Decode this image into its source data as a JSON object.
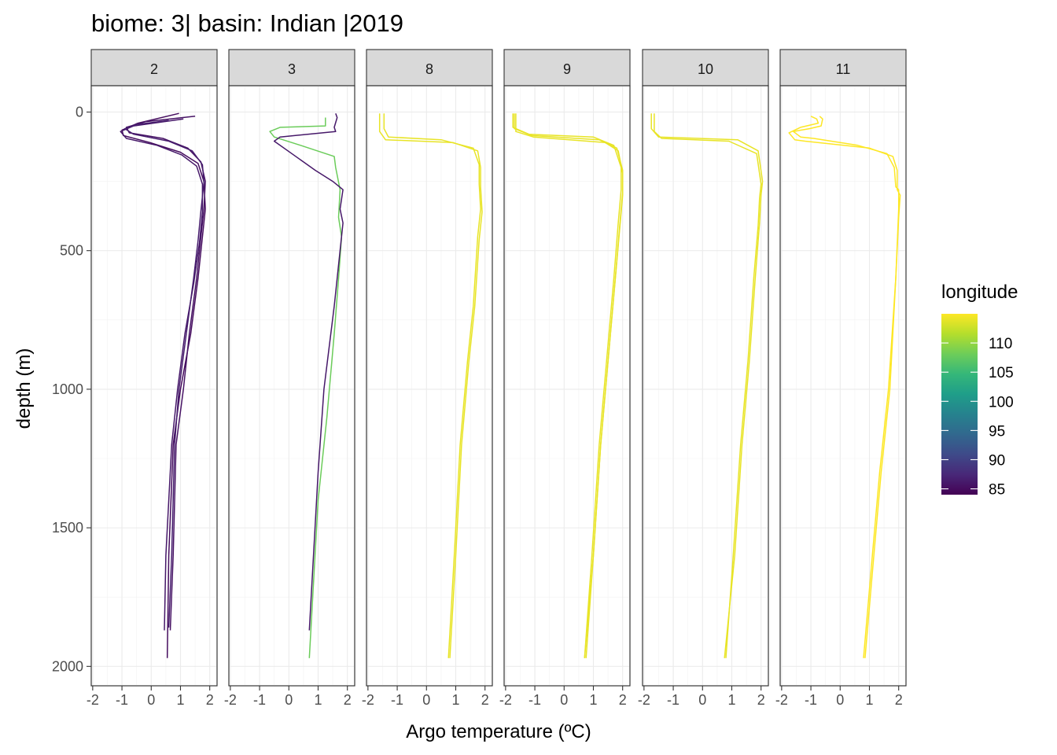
{
  "chart_data": {
    "type": "line",
    "title": "biome: 3| basin: Indian |2019",
    "xlabel": "Argo temperature (ºC)",
    "ylabel": "depth (m)",
    "xlim": [
      -2.05,
      2.25
    ],
    "ylim": [
      2070,
      -95
    ],
    "x_ticks": [
      -2,
      -1,
      0,
      1,
      2
    ],
    "x_tick_labels": [
      "-2",
      "-1",
      "0",
      "1",
      "2"
    ],
    "y_ticks": [
      0,
      500,
      1000,
      1500,
      2000
    ],
    "y_tick_labels": [
      "0",
      "500",
      "1000",
      "1500",
      "2000"
    ],
    "y_reversed": true,
    "grid": true,
    "legend": {
      "title": "longitude",
      "position": "right",
      "min": 84,
      "max": 115,
      "ticks": [
        85,
        90,
        95,
        100,
        105,
        110
      ],
      "tick_labels": [
        "85",
        "90",
        "95",
        "100",
        "105",
        "110"
      ],
      "palette": [
        "#440154",
        "#482878",
        "#3E4A89",
        "#31688E",
        "#26828E",
        "#1F9E89",
        "#35B779",
        "#6DCD59",
        "#B4DE2C",
        "#FDE725"
      ]
    },
    "facets": [
      {
        "label": "2",
        "series": [
          {
            "lon": 85,
            "x": [
              0.95,
              -0.45,
              -1.0,
              -0.95,
              -0.05,
              1.0,
              1.6,
              1.8,
              1.85,
              1.75,
              1.6,
              1.35,
              1.0,
              0.75,
              0.6,
              0.55
            ],
            "y": [
              5,
              40,
              65,
              85,
              110,
              145,
              185,
              250,
              350,
              450,
              600,
              800,
              1000,
              1200,
              1600,
              1970
            ]
          },
          {
            "lon": 85.5,
            "x": [
              1.5,
              -0.2,
              -0.85,
              -0.75,
              0.4,
              1.25,
              1.7,
              1.85,
              1.8,
              1.7,
              1.55,
              1.3,
              1.1,
              0.85,
              0.75,
              0.65
            ],
            "y": [
              15,
              35,
              55,
              75,
              95,
              130,
              180,
              250,
              350,
              450,
              600,
              800,
              1000,
              1200,
              1600,
              1870
            ]
          },
          {
            "lon": 86,
            "x": [
              1.1,
              -0.6,
              -1.05,
              -0.85,
              0.2,
              1.05,
              1.55,
              1.75,
              1.75,
              1.65,
              1.45,
              1.15,
              0.9,
              0.7,
              0.5,
              0.45
            ],
            "y": [
              25,
              50,
              70,
              95,
              120,
              155,
              195,
              260,
              360,
              470,
              620,
              800,
              1000,
              1200,
              1600,
              1870
            ]
          },
          {
            "lon": 86.5,
            "x": [
              0.6,
              -0.5,
              -0.9,
              -0.6,
              0.6,
              1.4,
              1.75,
              1.8,
              1.7,
              1.6,
              1.45,
              1.2,
              0.95,
              0.8,
              0.7,
              0.6
            ],
            "y": [
              30,
              45,
              60,
              80,
              105,
              140,
              190,
              255,
              355,
              465,
              600,
              800,
              1000,
              1200,
              1600,
              1860
            ]
          }
        ]
      },
      {
        "label": "3",
        "series": [
          {
            "lon": 108,
            "x": [
              1.25,
              1.25,
              -0.3,
              -0.65,
              -0.5,
              0.4,
              1.55,
              1.6,
              1.75,
              1.7,
              1.8,
              1.7,
              1.55,
              1.3,
              1.0,
              0.7
            ],
            "y": [
              20,
              50,
              55,
              70,
              90,
              120,
              160,
              200,
              280,
              380,
              450,
              600,
              800,
              1100,
              1400,
              1970
            ]
          },
          {
            "lon": 86,
            "x": [
              1.6,
              1.65,
              1.55,
              1.6,
              -0.3,
              -0.5,
              0.1,
              0.5,
              0.9,
              1.5,
              1.85,
              1.75,
              1.85,
              1.75,
              1.55,
              1.2,
              1.0,
              0.7
            ],
            "y": [
              5,
              20,
              55,
              70,
              90,
              105,
              150,
              180,
              210,
              250,
              280,
              350,
              400,
              500,
              700,
              1000,
              1300,
              1870
            ]
          }
        ]
      },
      {
        "label": "8",
        "series": [
          {
            "lon": 114,
            "x": [
              -1.45,
              -1.45,
              -1.3,
              0.5,
              1.6,
              1.8,
              1.8,
              1.85,
              1.75,
              1.6,
              1.4,
              1.15,
              0.95,
              0.75
            ],
            "y": [
              5,
              60,
              90,
              100,
              130,
              190,
              260,
              350,
              450,
              700,
              900,
              1200,
              1600,
              1970
            ]
          },
          {
            "lon": 114,
            "x": [
              -1.6,
              -1.6,
              -1.4,
              0.9,
              1.75,
              1.85,
              1.85,
              1.9,
              1.8,
              1.65,
              1.45,
              1.2,
              1.0,
              0.8
            ],
            "y": [
              5,
              70,
              100,
              110,
              140,
              200,
              270,
              360,
              460,
              700,
              900,
              1200,
              1600,
              1970
            ]
          }
        ]
      },
      {
        "label": "9",
        "series": [
          {
            "lon": 114,
            "x": [
              -1.75,
              -1.75,
              -1.2,
              1.0,
              1.7,
              1.95,
              1.95,
              1.85,
              1.7,
              1.45,
              1.2,
              0.95,
              0.7
            ],
            "y": [
              5,
              55,
              80,
              90,
              120,
              200,
              280,
              400,
              600,
              900,
              1200,
              1600,
              1970
            ]
          },
          {
            "lon": 114,
            "x": [
              -1.7,
              -1.7,
              -1.1,
              1.2,
              1.8,
              2.0,
              2.0,
              1.9,
              1.75,
              1.5,
              1.25,
              1.0,
              0.75
            ],
            "y": [
              5,
              60,
              85,
              100,
              130,
              210,
              290,
              410,
              600,
              900,
              1200,
              1600,
              1970
            ]
          },
          {
            "lon": 114,
            "x": [
              -1.65,
              -1.65,
              -1.05,
              1.4,
              1.85,
              2.0,
              2.0,
              1.9,
              1.75,
              1.5,
              1.25,
              1.0,
              0.7
            ],
            "y": [
              5,
              70,
              90,
              110,
              140,
              220,
              300,
              420,
              600,
              900,
              1200,
              1600,
              1970
            ]
          }
        ]
      },
      {
        "label": "10",
        "series": [
          {
            "lon": 114,
            "x": [
              -1.75,
              -1.75,
              -1.5,
              1.2,
              1.9,
              2.05,
              2.0,
              1.95,
              1.8,
              1.6,
              1.35,
              1.1,
              0.75
            ],
            "y": [
              5,
              60,
              90,
              100,
              140,
              250,
              300,
              400,
              600,
              900,
              1200,
              1600,
              1970
            ]
          },
          {
            "lon": 114,
            "x": [
              -1.65,
              -1.65,
              -1.4,
              0.9,
              1.85,
              2.0,
              1.95,
              1.9,
              1.75,
              1.55,
              1.3,
              1.05,
              0.8
            ],
            "y": [
              5,
              70,
              95,
              105,
              150,
              260,
              310,
              410,
              600,
              900,
              1200,
              1600,
              1970
            ]
          }
        ]
      },
      {
        "label": "11",
        "series": [
          {
            "lon": 115,
            "x": [
              -0.7,
              -0.6,
              -0.65,
              -1.05,
              -1.6,
              -1.35,
              -0.9,
              0.6,
              1.6,
              1.85,
              1.9,
              2.0,
              2.0,
              1.9,
              1.65,
              1.35,
              1.1,
              0.8
            ],
            "y": [
              15,
              25,
              50,
              60,
              70,
              90,
              95,
              120,
              150,
              200,
              270,
              280,
              350,
              600,
              1000,
              1300,
              1600,
              1970
            ]
          },
          {
            "lon": 115,
            "x": [
              -1.0,
              -0.8,
              -0.75,
              -1.35,
              -1.75,
              -1.55,
              -1.2,
              1.0,
              1.8,
              1.95,
              1.95,
              2.05,
              2.0,
              1.9,
              1.7,
              1.4,
              1.15,
              0.85
            ],
            "y": [
              15,
              25,
              40,
              55,
              75,
              100,
              105,
              130,
              160,
              210,
              280,
              300,
              380,
              600,
              1000,
              1300,
              1600,
              1970
            ]
          }
        ]
      }
    ]
  }
}
